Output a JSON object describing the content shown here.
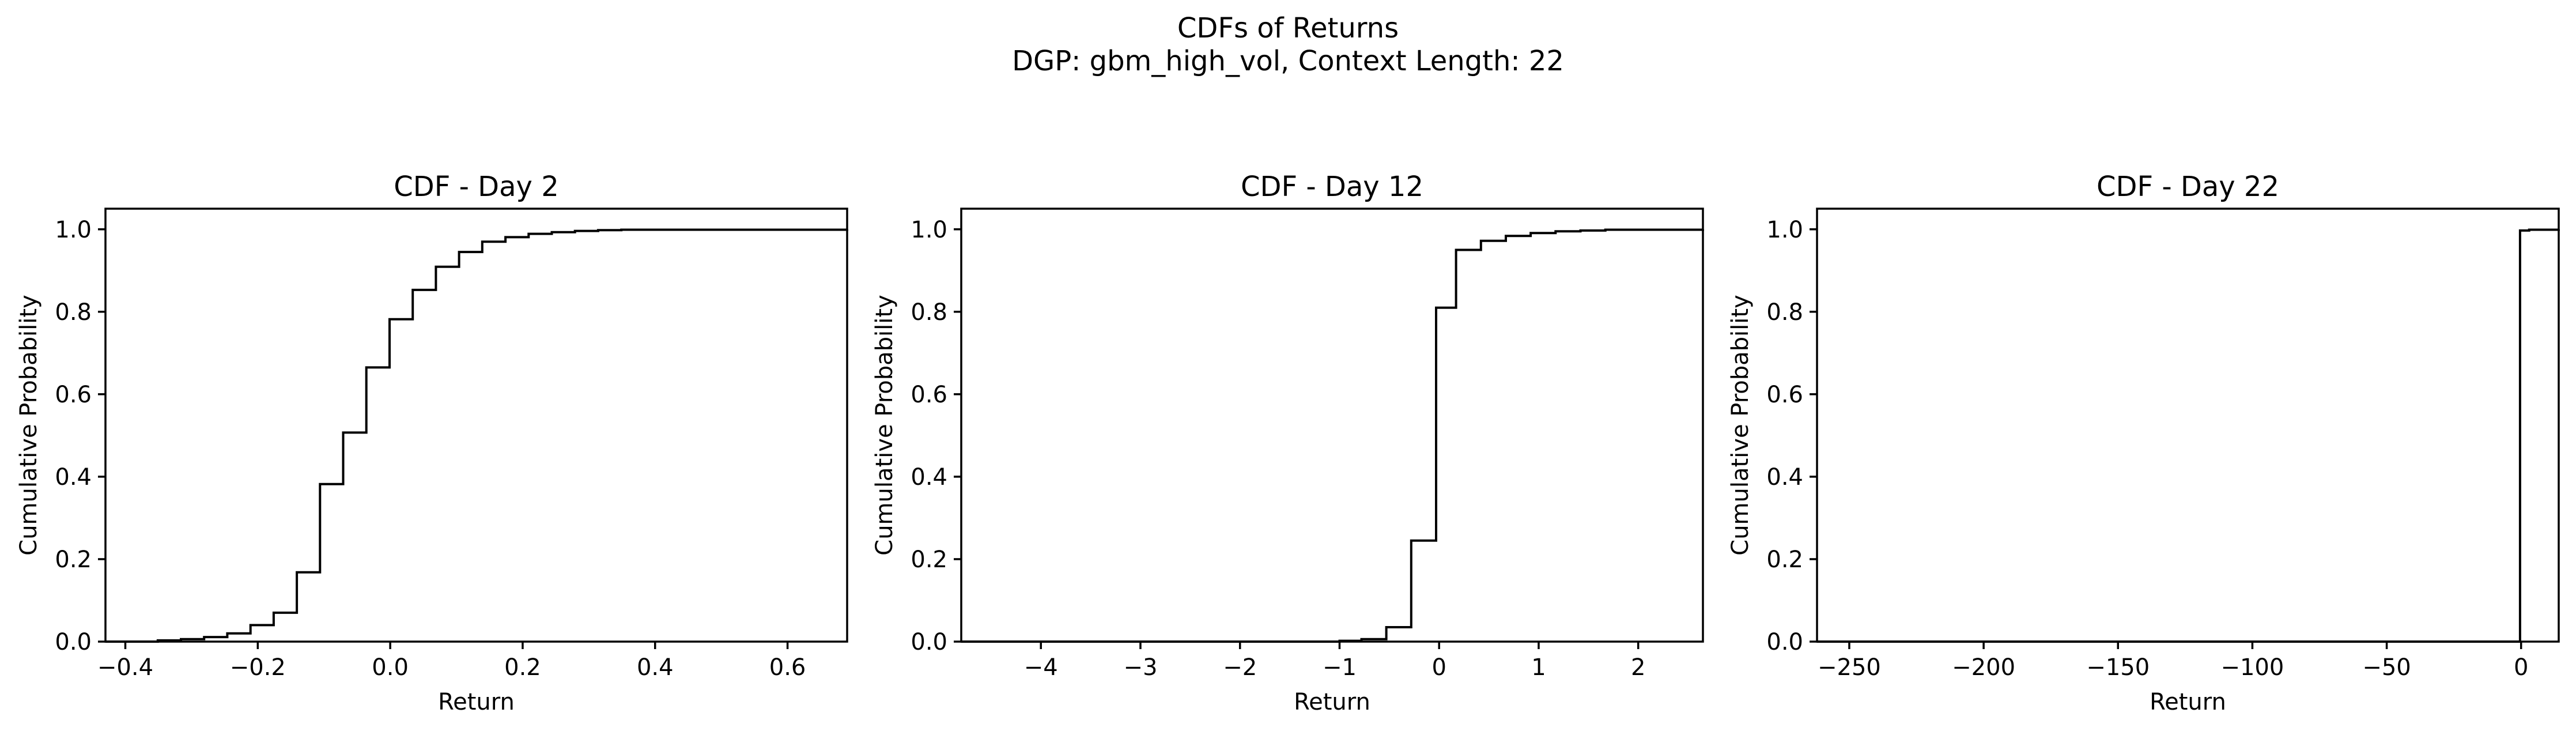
{
  "figure": {
    "suptitle_line1": "CDFs of Returns",
    "suptitle_line2": "DGP: gbm_high_vol, Context Length: 22"
  },
  "chart_data": [
    {
      "type": "line",
      "drawstyle": "steps-post",
      "title": "CDF - Day 2",
      "xlabel": "Return",
      "ylabel": "Cumulative Probability",
      "xlim": [
        -0.43,
        0.69
      ],
      "ylim": [
        0.0,
        1.05
      ],
      "xticks": [
        -0.4,
        -0.2,
        0.0,
        0.2,
        0.4,
        0.6
      ],
      "xtick_labels": [
        "−0.4",
        "−0.2",
        "0.0",
        "0.2",
        "0.4",
        "0.6"
      ],
      "yticks": [
        0.0,
        0.2,
        0.4,
        0.6,
        0.8,
        1.0
      ],
      "ytick_labels": [
        "0.0",
        "0.2",
        "0.4",
        "0.6",
        "0.8",
        "1.0"
      ],
      "series": [
        {
          "color": "#000000",
          "x": [
            -0.43,
            -0.351,
            -0.316,
            -0.281,
            -0.246,
            -0.211,
            -0.176,
            -0.141,
            -0.106,
            -0.071,
            -0.036,
            -0.001,
            0.034,
            0.069,
            0.104,
            0.139,
            0.174,
            0.209,
            0.244,
            0.279,
            0.314,
            0.349,
            0.69
          ],
          "y": [
            0.0,
            0.003,
            0.006,
            0.011,
            0.02,
            0.04,
            0.07,
            0.168,
            0.382,
            0.507,
            0.665,
            0.782,
            0.853,
            0.909,
            0.945,
            0.97,
            0.981,
            0.989,
            0.993,
            0.996,
            0.998,
            0.999,
            1.0
          ]
        }
      ]
    },
    {
      "type": "line",
      "drawstyle": "steps-post",
      "title": "CDF - Day 12",
      "xlabel": "Return",
      "ylabel": "Cumulative Probability",
      "xlim": [
        -4.8,
        2.65
      ],
      "ylim": [
        0.0,
        1.05
      ],
      "xticks": [
        -4,
        -3,
        -2,
        -1,
        0,
        1,
        2
      ],
      "xtick_labels": [
        "−4",
        "−3",
        "−2",
        "−1",
        "0",
        "1",
        "2"
      ],
      "yticks": [
        0.0,
        0.2,
        0.4,
        0.6,
        0.8,
        1.0
      ],
      "ytick_labels": [
        "0.0",
        "0.2",
        "0.4",
        "0.6",
        "0.8",
        "1.0"
      ],
      "series": [
        {
          "color": "#000000",
          "x": [
            -4.8,
            -1.0,
            -0.78,
            -0.53,
            -0.28,
            -0.03,
            0.17,
            0.42,
            0.67,
            0.92,
            1.17,
            1.42,
            1.67,
            2.65
          ],
          "y": [
            0.0,
            0.002,
            0.006,
            0.035,
            0.245,
            0.81,
            0.95,
            0.972,
            0.984,
            0.991,
            0.995,
            0.997,
            0.999,
            1.0
          ]
        }
      ]
    },
    {
      "type": "line",
      "drawstyle": "steps-post",
      "title": "CDF - Day 22",
      "xlabel": "Return",
      "ylabel": "Cumulative Probability",
      "xlim": [
        -262,
        14
      ],
      "ylim": [
        0.0,
        1.05
      ],
      "xticks": [
        -250,
        -200,
        -150,
        -100,
        -50,
        0
      ],
      "xtick_labels": [
        "−250",
        "−200",
        "−150",
        "−100",
        "−50",
        "0"
      ],
      "yticks": [
        0.0,
        0.2,
        0.4,
        0.6,
        0.8,
        1.0
      ],
      "ytick_labels": [
        "0.0",
        "0.2",
        "0.4",
        "0.6",
        "0.8",
        "1.0"
      ],
      "series": [
        {
          "color": "#000000",
          "x": [
            -262,
            -0.4,
            3.0,
            14
          ],
          "y": [
            0.0,
            0.997,
            0.999,
            1.0
          ]
        }
      ]
    }
  ]
}
